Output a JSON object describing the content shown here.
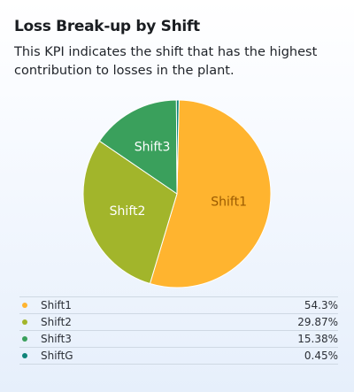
{
  "card": {
    "title": "Loss Break-up by Shift",
    "subtitle": "This KPI indicates the shift that has the highest contribution to losses in the plant."
  },
  "chart_data": {
    "type": "pie",
    "title": "Loss Break-up by Shift",
    "categories": [
      "Shift1",
      "Shift2",
      "Shift3",
      "ShiftG"
    ],
    "values": [
      54.3,
      29.87,
      15.38,
      0.45
    ],
    "value_labels": [
      "54.3%",
      "29.87%",
      "15.38%",
      "0.45%"
    ],
    "slice_labels": [
      "Shift1",
      "Shift2",
      "Shift3",
      ""
    ],
    "colors": [
      "#ffb42f",
      "#a2b52b",
      "#3aa05c",
      "#0f8479"
    ],
    "label_colors": [
      "#9a5a00",
      "#ffffff",
      "#ffffff",
      "#ffffff"
    ],
    "legend_position": "bottom"
  }
}
